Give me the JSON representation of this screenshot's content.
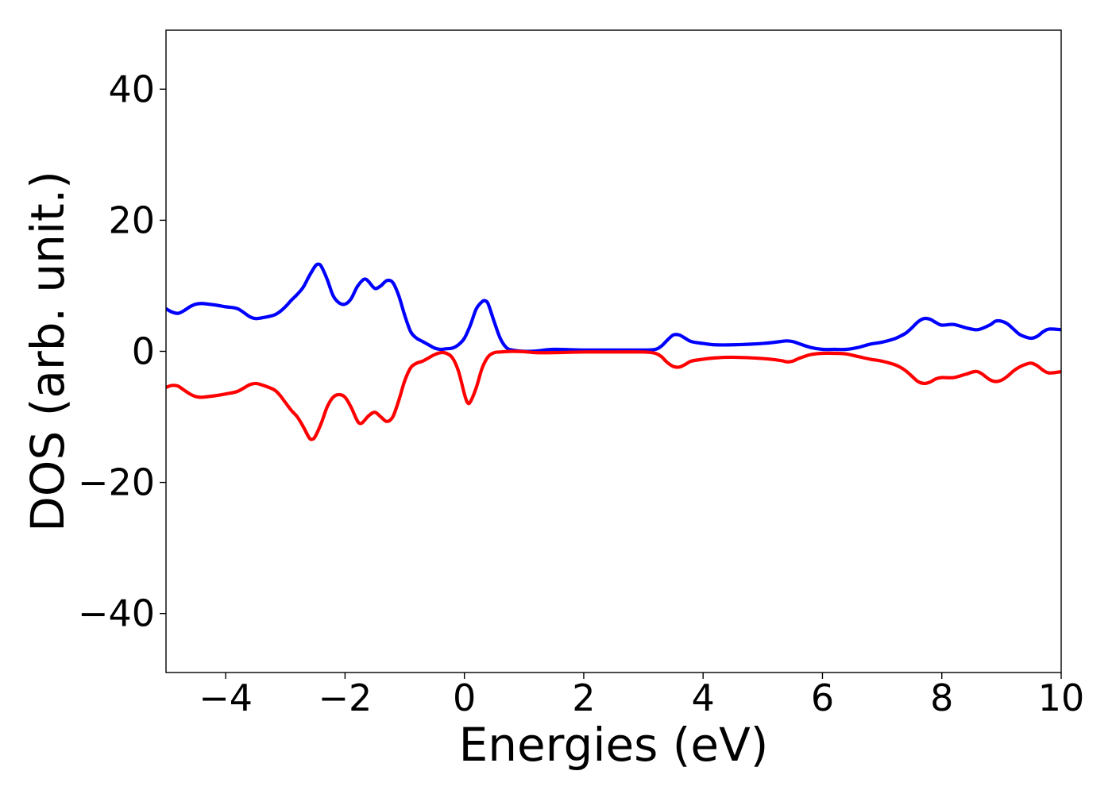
{
  "chart_data": {
    "type": "line",
    "title": "",
    "xlabel": "Energies (eV)",
    "ylabel": "DOS (arb. unit.)",
    "xlim": [
      -5,
      10
    ],
    "ylim": [
      -49,
      49
    ],
    "xticks": [
      -4,
      -2,
      0,
      2,
      4,
      6,
      8,
      10
    ],
    "xtick_labels": [
      "−4",
      "−2",
      "0",
      "2",
      "4",
      "6",
      "8",
      "10"
    ],
    "yticks": [
      -40,
      -20,
      0,
      20,
      40
    ],
    "ytick_labels": [
      "−40",
      "−20",
      "0",
      "20",
      "40"
    ],
    "grid": false,
    "legend": "none",
    "series": [
      {
        "color": "#0000ff",
        "x": [
          -5,
          -4.9,
          -4.8,
          -4.7,
          -4.6,
          -4.5,
          -4.4,
          -4.2,
          -4.0,
          -3.8,
          -3.6,
          -3.5,
          -3.4,
          -3.2,
          -3.1,
          -3.0,
          -2.9,
          -2.8,
          -2.7,
          -2.6,
          -2.5,
          -2.45,
          -2.4,
          -2.3,
          -2.2,
          -2.1,
          -2.0,
          -1.9,
          -1.8,
          -1.7,
          -1.65,
          -1.6,
          -1.5,
          -1.4,
          -1.3,
          -1.2,
          -1.1,
          -1.0,
          -0.9,
          -0.8,
          -0.7,
          -0.6,
          -0.5,
          -0.4,
          -0.3,
          -0.2,
          -0.1,
          0.0,
          0.1,
          0.2,
          0.3,
          0.35,
          0.4,
          0.5,
          0.6,
          0.7,
          0.8,
          1.0,
          1.2,
          1.5,
          2.0,
          2.5,
          3.0,
          3.2,
          3.3,
          3.4,
          3.5,
          3.6,
          3.7,
          3.8,
          4.0,
          4.2,
          4.5,
          5.0,
          5.3,
          5.4,
          5.5,
          5.6,
          5.8,
          6.0,
          6.2,
          6.4,
          6.6,
          6.8,
          7.0,
          7.2,
          7.3,
          7.4,
          7.5,
          7.6,
          7.7,
          7.8,
          7.9,
          8.0,
          8.2,
          8.4,
          8.6,
          8.8,
          8.9,
          9.0,
          9.1,
          9.2,
          9.3,
          9.4,
          9.5,
          9.6,
          9.7,
          9.8,
          10.0
        ],
        "y": [
          6.5,
          6.0,
          5.8,
          6.2,
          6.8,
          7.2,
          7.3,
          7.1,
          6.8,
          6.5,
          5.3,
          5.0,
          5.1,
          5.5,
          6.0,
          6.8,
          7.8,
          8.7,
          9.8,
          11.5,
          13.0,
          13.3,
          13.0,
          11.0,
          8.5,
          7.4,
          7.2,
          8.0,
          9.8,
          10.9,
          11.0,
          10.6,
          9.6,
          10.0,
          10.8,
          10.5,
          8.5,
          5.5,
          3.0,
          2.0,
          1.5,
          1.0,
          0.5,
          0.3,
          0.4,
          0.5,
          1.0,
          2.0,
          4.0,
          6.5,
          7.6,
          7.7,
          7.2,
          4.5,
          2.0,
          0.6,
          0.2,
          0.0,
          0.05,
          0.3,
          0.2,
          0.2,
          0.2,
          0.3,
          0.8,
          1.7,
          2.5,
          2.5,
          2.0,
          1.5,
          1.2,
          1.0,
          1.0,
          1.2,
          1.5,
          1.6,
          1.5,
          1.2,
          0.6,
          0.3,
          0.3,
          0.3,
          0.6,
          1.1,
          1.4,
          1.9,
          2.3,
          2.8,
          3.6,
          4.5,
          5.0,
          4.9,
          4.4,
          4.0,
          4.1,
          3.6,
          3.3,
          4.0,
          4.6,
          4.6,
          4.2,
          3.4,
          2.6,
          2.2,
          2.0,
          2.3,
          3.0,
          3.4,
          3.3
        ]
      },
      {
        "color": "#ff0000",
        "x": [
          -5,
          -4.9,
          -4.8,
          -4.7,
          -4.6,
          -4.5,
          -4.4,
          -4.2,
          -4.0,
          -3.8,
          -3.6,
          -3.5,
          -3.4,
          -3.2,
          -3.1,
          -3.0,
          -2.9,
          -2.8,
          -2.7,
          -2.6,
          -2.55,
          -2.5,
          -2.4,
          -2.3,
          -2.2,
          -2.1,
          -2.0,
          -1.9,
          -1.8,
          -1.75,
          -1.7,
          -1.6,
          -1.5,
          -1.4,
          -1.3,
          -1.2,
          -1.1,
          -1.0,
          -0.9,
          -0.8,
          -0.7,
          -0.6,
          -0.5,
          -0.4,
          -0.3,
          -0.2,
          -0.1,
          0.0,
          0.05,
          0.1,
          0.2,
          0.3,
          0.4,
          0.5,
          0.6,
          0.8,
          1.0,
          1.2,
          1.5,
          2.0,
          2.5,
          3.0,
          3.2,
          3.3,
          3.4,
          3.5,
          3.6,
          3.7,
          3.8,
          4.0,
          4.2,
          4.5,
          5.0,
          5.3,
          5.4,
          5.5,
          5.6,
          5.8,
          6.0,
          6.2,
          6.4,
          6.6,
          6.8,
          7.0,
          7.2,
          7.3,
          7.4,
          7.5,
          7.6,
          7.7,
          7.8,
          7.9,
          8.0,
          8.2,
          8.4,
          8.6,
          8.8,
          8.9,
          9.0,
          9.1,
          9.2,
          9.3,
          9.4,
          9.5,
          9.6,
          9.7,
          9.8,
          10.0
        ],
        "y": [
          -5.5,
          -5.2,
          -5.3,
          -5.9,
          -6.5,
          -6.9,
          -7.0,
          -6.8,
          -6.5,
          -6.1,
          -5.1,
          -4.9,
          -5.1,
          -5.8,
          -6.6,
          -7.8,
          -9.0,
          -10.0,
          -11.5,
          -13.2,
          -13.4,
          -13.0,
          -11.0,
          -8.5,
          -7.0,
          -6.6,
          -7.0,
          -8.5,
          -10.5,
          -11.0,
          -10.8,
          -9.8,
          -9.3,
          -10.0,
          -10.7,
          -10.0,
          -7.5,
          -4.5,
          -2.5,
          -1.8,
          -1.5,
          -1.0,
          -0.5,
          -0.2,
          -0.3,
          -1.0,
          -3.0,
          -6.5,
          -7.8,
          -7.7,
          -5.5,
          -2.5,
          -0.8,
          -0.2,
          -0.1,
          0.0,
          -0.05,
          -0.2,
          -0.2,
          -0.1,
          -0.1,
          -0.1,
          -0.3,
          -0.8,
          -1.7,
          -2.3,
          -2.4,
          -2.0,
          -1.5,
          -1.2,
          -1.0,
          -0.9,
          -1.1,
          -1.4,
          -1.6,
          -1.5,
          -1.1,
          -0.5,
          -0.3,
          -0.3,
          -0.4,
          -0.8,
          -1.2,
          -1.5,
          -2.0,
          -2.4,
          -3.0,
          -3.8,
          -4.6,
          -4.9,
          -4.7,
          -4.2,
          -4.0,
          -4.0,
          -3.5,
          -3.1,
          -4.3,
          -4.6,
          -4.4,
          -3.8,
          -3.0,
          -2.4,
          -2.0,
          -1.8,
          -2.2,
          -2.9,
          -3.3,
          -3.1
        ]
      }
    ]
  }
}
